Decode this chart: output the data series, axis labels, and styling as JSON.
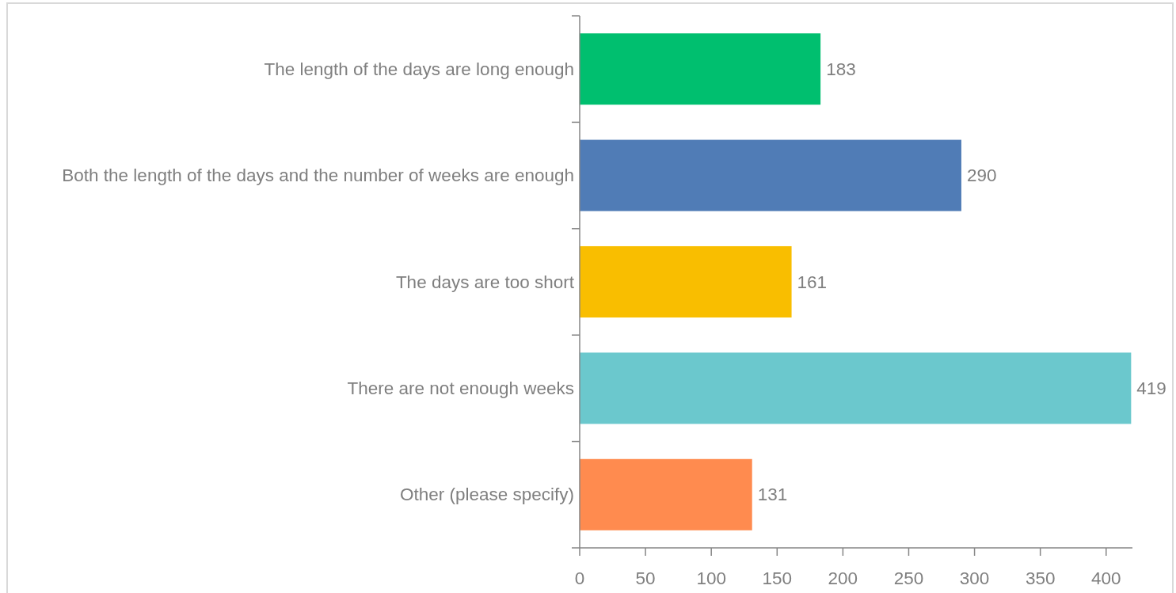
{
  "chart_data": {
    "type": "bar",
    "orientation": "horizontal",
    "categories": [
      "The length of the days are long enough",
      "Both the length of the days and the number of weeks are enough",
      "The days are too short",
      "There are not enough weeks",
      "Other (please specify)"
    ],
    "values": [
      183,
      290,
      161,
      419,
      131
    ],
    "colors": [
      "#00bf6f",
      "#507cb6",
      "#f9be00",
      "#6bc8cd",
      "#ff8b4f"
    ],
    "xlim": [
      0,
      420
    ],
    "xticks": [
      0,
      50,
      100,
      150,
      200,
      250,
      300,
      350,
      400
    ],
    "data_labels": true,
    "grid": false
  }
}
